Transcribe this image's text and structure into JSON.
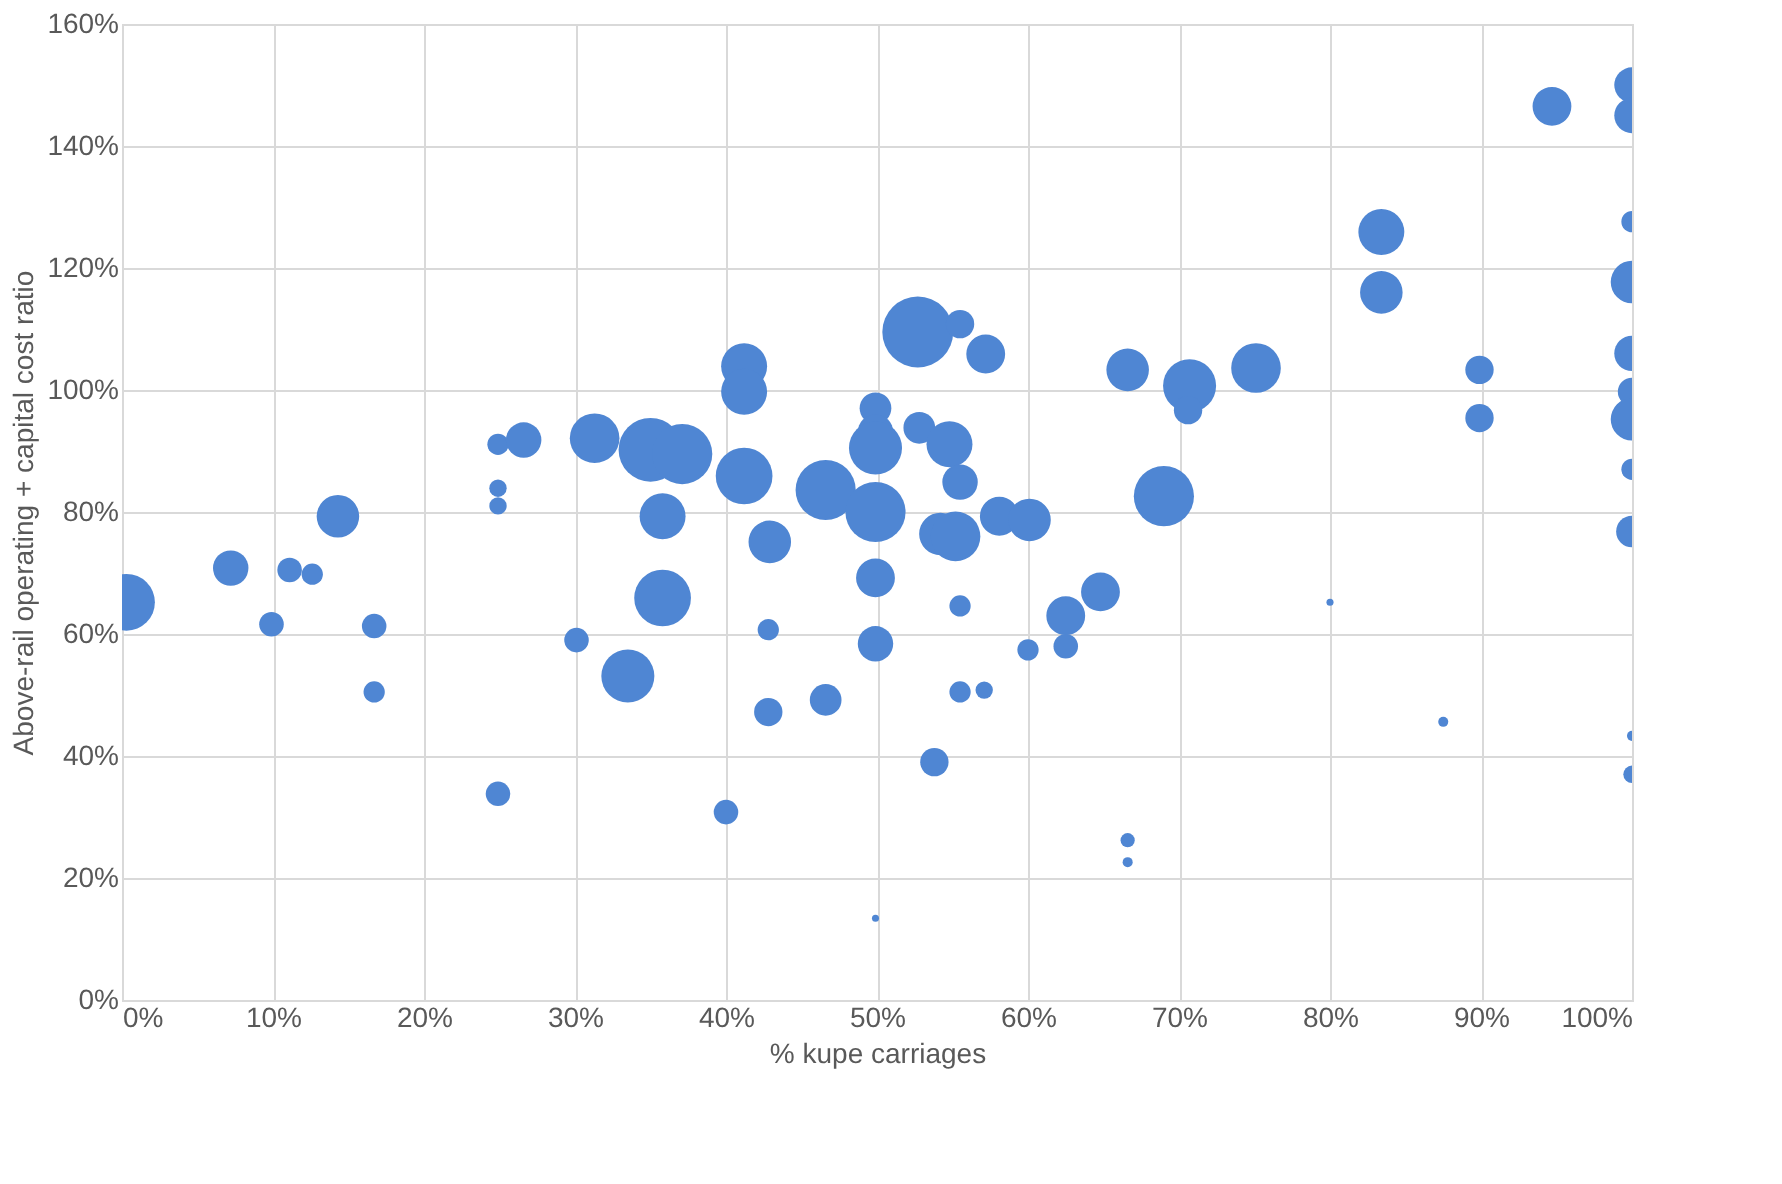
{
  "chart_data": {
    "type": "bubble",
    "xlabel": "% kupe carriages",
    "ylabel": "Above-rail operating + capital cost ratio",
    "x": [
      0.3,
      7.2,
      9.9,
      11.1,
      12.6,
      14.3,
      16.7,
      16.7,
      24.9,
      24.9,
      24.9,
      24.9,
      26.6,
      30.1,
      31.3,
      33.5,
      35,
      37.1,
      35.8,
      35.8,
      40,
      41.2,
      41.2,
      41.2,
      42.9,
      42.8,
      42.8,
      46.6,
      46.6,
      49.9,
      49.9,
      49.9,
      49.9,
      49.9,
      49.9,
      49.9,
      52.7,
      52.8,
      53.8,
      54.2,
      55.2,
      54.8,
      55.5,
      55.5,
      55.5,
      55.5,
      57.1,
      57.2,
      58.1,
      60.1,
      60,
      62.5,
      62.5,
      64.8,
      66.6,
      66.6,
      66.6,
      69,
      70.7,
      70.6,
      75.1,
      80,
      87.5,
      83.4,
      83.4,
      89.9,
      89.9,
      94.7,
      100,
      100,
      100,
      100,
      100,
      100,
      100,
      100,
      100,
      100,
      100
    ],
    "values": [
      65.2,
      70.8,
      61.6,
      70.5,
      69.8,
      79.3,
      61.3,
      50.5,
      91.1,
      83.9,
      81,
      33.8,
      91.8,
      59,
      92.1,
      53.1,
      90.2,
      89.5,
      79.3,
      65.9,
      30.8,
      103.9,
      99.7,
      85.9,
      75.1,
      60.7,
      47.2,
      49.2,
      83.6,
      97,
      93.1,
      90.5,
      80,
      69.2,
      58.4,
      13.4,
      109.5,
      93.8,
      39,
      76.4,
      76,
      91.1,
      110.8,
      84.9,
      64.6,
      50.5,
      50.8,
      105.9,
      79.3,
      78.7,
      57.4,
      63,
      58,
      66.9,
      103.3,
      26.2,
      22.6,
      82.6,
      100.7,
      96.7,
      103.6,
      65.2,
      45.6,
      125.9,
      116,
      103.3,
      95.4,
      146.5,
      150,
      145,
      127.6,
      117.7,
      106,
      99.7,
      95.2,
      87,
      76.8,
      43.3,
      37
    ],
    "sizes": [
      0.64,
      0.25,
      0.12,
      0.12,
      0.09,
      0.36,
      0.12,
      0.09,
      0.09,
      0.06,
      0.06,
      0.12,
      0.25,
      0.12,
      0.49,
      0.56,
      0.81,
      0.72,
      0.42,
      0.64,
      0.12,
      0.42,
      0.42,
      0.64,
      0.36,
      0.09,
      0.16,
      0.2,
      0.72,
      0.2,
      0.25,
      0.56,
      0.72,
      0.3,
      0.25,
      0.01,
      1,
      0.2,
      0.16,
      0.36,
      0.49,
      0.42,
      0.16,
      0.25,
      0.09,
      0.09,
      0.06,
      0.3,
      0.3,
      0.36,
      0.09,
      0.3,
      0.12,
      0.3,
      0.36,
      0.04,
      0.02,
      0.72,
      0.56,
      0.16,
      0.49,
      0.01,
      0.02,
      0.42,
      0.36,
      0.16,
      0.16,
      0.3,
      0.25,
      0.25,
      0.09,
      0.36,
      0.25,
      0.16,
      0.36,
      0.09,
      0.2,
      0.02,
      0.06
    ],
    "color": "#4f86d3",
    "xlim": [
      0,
      100
    ],
    "xticks": [
      {
        "value": 0,
        "label": "0%"
      },
      {
        "value": 10,
        "label": "10%"
      },
      {
        "value": 20,
        "label": "20%"
      },
      {
        "value": 30,
        "label": "30%"
      },
      {
        "value": 40,
        "label": "40%"
      },
      {
        "value": 50,
        "label": "50%"
      },
      {
        "value": 60,
        "label": "60%"
      },
      {
        "value": 70,
        "label": "70%"
      },
      {
        "value": 80,
        "label": "80%"
      },
      {
        "value": 90,
        "label": "90%"
      },
      {
        "value": 100,
        "label": "100%"
      }
    ],
    "ylim": [
      0,
      160
    ],
    "yticks": [
      {
        "value": 0,
        "label": "0%"
      },
      {
        "value": 20,
        "label": "20%"
      },
      {
        "value": 40,
        "label": "40%"
      },
      {
        "value": 60,
        "label": "60%"
      },
      {
        "value": 80,
        "label": "80%"
      },
      {
        "value": 100,
        "label": "100%"
      },
      {
        "value": 120,
        "label": "120%"
      },
      {
        "value": 140,
        "label": "140%"
      },
      {
        "value": 160,
        "label": "160%"
      }
    ],
    "grid": true,
    "legend": false
  }
}
